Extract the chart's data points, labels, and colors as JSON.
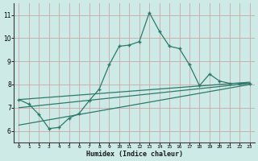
{
  "xlabel": "Humidex (Indice chaleur)",
  "bg_color": "#cdeae7",
  "grid_color": "#c8a8a8",
  "line_color": "#2d7a6a",
  "xlim": [
    -0.5,
    23.5
  ],
  "ylim": [
    5.5,
    11.5
  ],
  "xticks": [
    0,
    1,
    2,
    3,
    4,
    5,
    6,
    7,
    8,
    9,
    10,
    11,
    12,
    13,
    14,
    15,
    16,
    17,
    18,
    19,
    20,
    21,
    22,
    23
  ],
  "yticks": [
    6,
    7,
    8,
    9,
    10,
    11
  ],
  "main_x": [
    0,
    1,
    2,
    3,
    4,
    5,
    6,
    7,
    8,
    9,
    10,
    11,
    12,
    13,
    14,
    15,
    16,
    17,
    18,
    19,
    20,
    21,
    22,
    23
  ],
  "main_y": [
    7.35,
    7.15,
    6.7,
    6.1,
    6.15,
    6.55,
    6.75,
    7.3,
    7.8,
    8.85,
    9.65,
    9.7,
    9.85,
    11.1,
    10.3,
    9.65,
    9.55,
    8.85,
    7.95,
    8.45,
    8.15,
    8.05,
    8.05,
    8.05
  ],
  "line1_x": [
    0,
    23
  ],
  "line1_y": [
    7.35,
    8.1
  ],
  "line2_x": [
    0,
    23
  ],
  "line2_y": [
    7.0,
    8.05
  ],
  "line3_x": [
    0,
    23
  ],
  "line3_y": [
    6.25,
    8.0
  ]
}
